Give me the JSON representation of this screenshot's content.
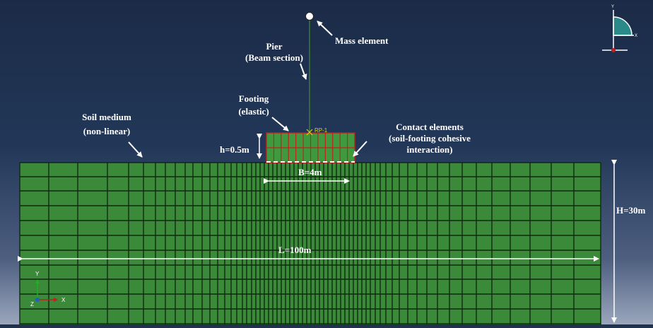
{
  "labels": {
    "mass_element": "Mass element",
    "pier_line1": "Pier",
    "pier_line2": "(Beam section)",
    "footing_line1": "Footing",
    "footing_line2": "(elastic)",
    "soil_line1": "Soil medium",
    "soil_line2": "(non-linear)",
    "contact_line1": "Contact elements",
    "contact_line2": "(soil-footing cohesive",
    "contact_line3": "interaction)",
    "rp": "RP-1",
    "footing_height": "h=0.5m",
    "footing_width": "B=4m",
    "soil_length": "L=100m",
    "soil_height": "H=30m"
  },
  "triad": {
    "x_label": "X",
    "y_label": "Y",
    "z_label": "Z"
  },
  "view_triad": {
    "y_label": "Y",
    "x_label": "X"
  },
  "colors": {
    "soil_fill": "#3a8a3a",
    "mesh_line": "#0f2a0f",
    "footing_fill": "#3f9a3f",
    "footing_line": "#c22020",
    "pier_line": "#3a7a3a",
    "annotation": "#ffffff",
    "x_axis": "#c02020",
    "y_axis": "#20b020",
    "z_axis": "#2060c0",
    "view_cube": "#2a8a8a"
  }
}
